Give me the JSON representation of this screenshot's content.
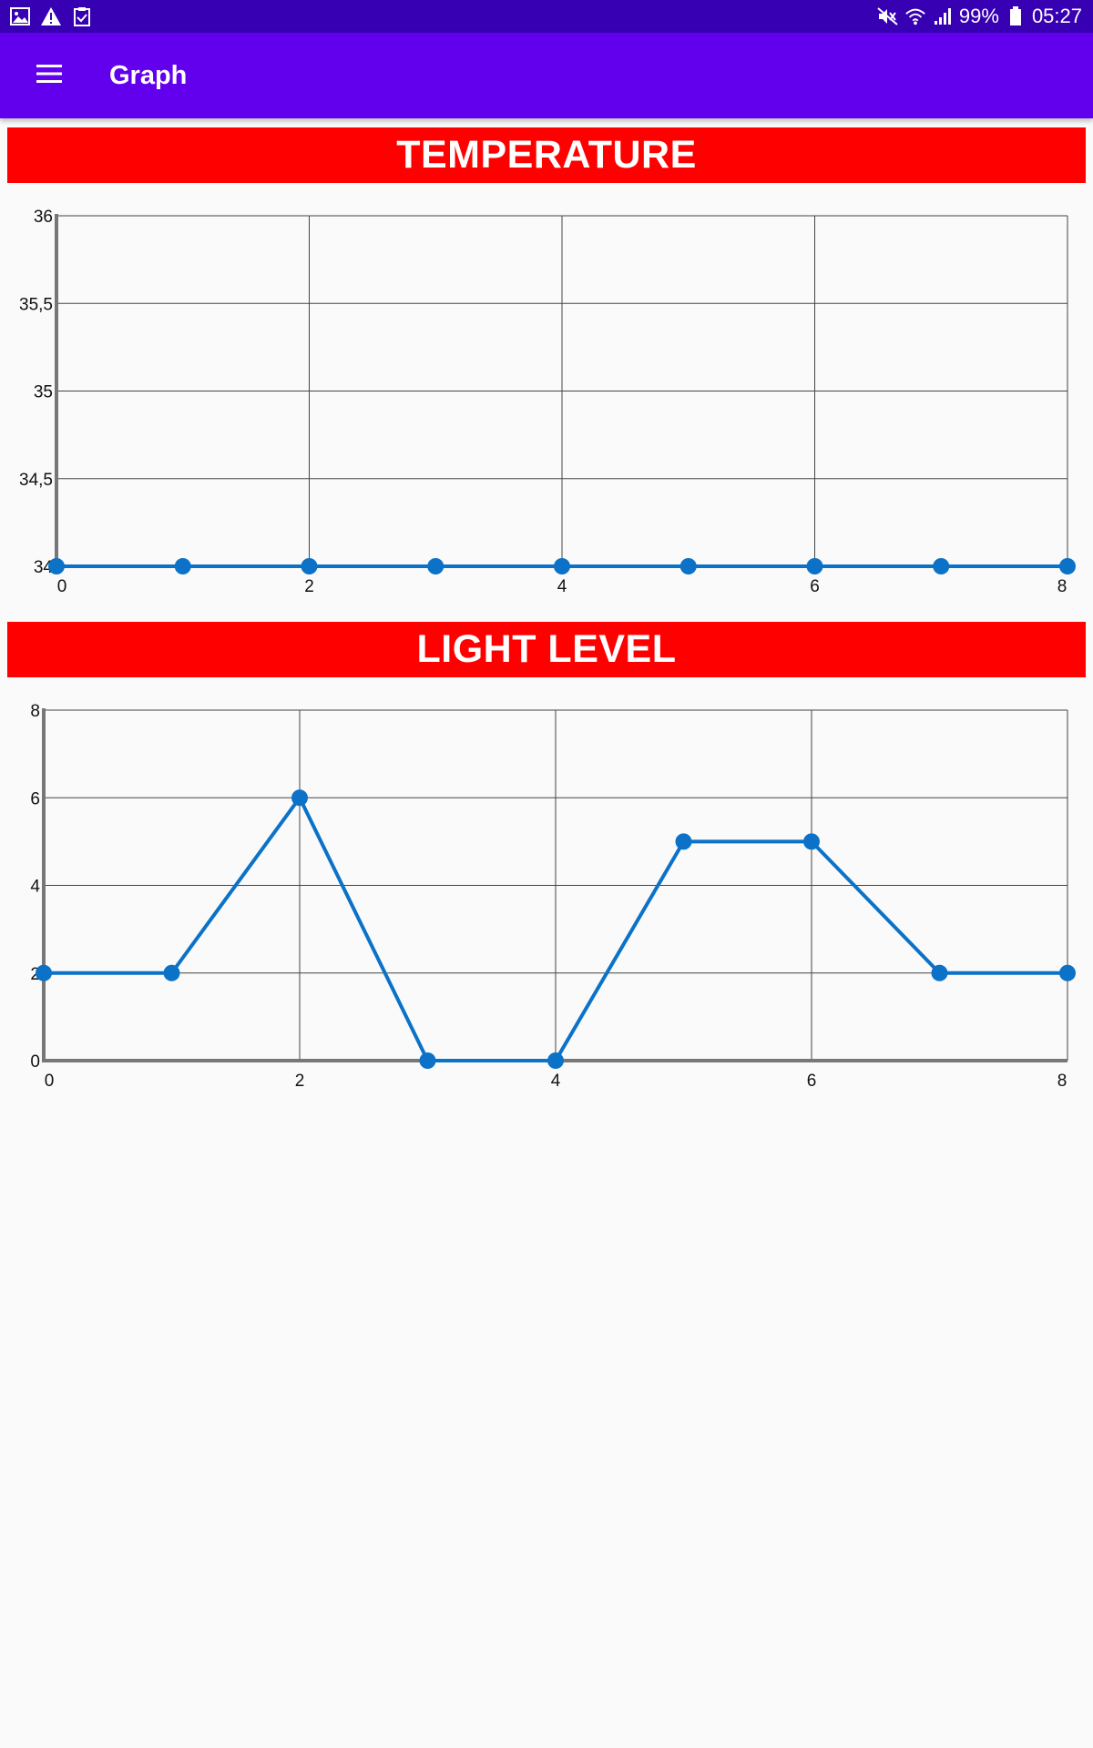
{
  "status_bar": {
    "left_icons": [
      "image-icon",
      "warning-icon",
      "clipboard-check-icon"
    ],
    "right_icons": [
      "mute-icon",
      "wifi-icon",
      "signal-icon",
      "battery-icon"
    ],
    "battery": "99%",
    "time": "05:27"
  },
  "app_bar": {
    "menu_icon": "hamburger-menu-icon",
    "title": "Graph"
  },
  "colors": {
    "status_bar": "#3700b3",
    "app_bar": "#6200ee",
    "section_header": "#ff0000",
    "series_line": "#0b72c8"
  },
  "sections": {
    "temperature": {
      "header": "TEMPERATURE"
    },
    "light": {
      "header": "LIGHT LEVEL"
    }
  },
  "chart_data": [
    {
      "type": "line",
      "x": [
        0,
        1,
        2,
        3,
        4,
        5,
        6,
        7,
        8
      ],
      "series": [
        {
          "values": [
            34,
            34,
            34,
            34,
            34,
            34,
            34,
            34,
            34
          ]
        }
      ],
      "xlim": [
        0,
        8
      ],
      "ylim": [
        34,
        36
      ],
      "x_ticks": [
        "0",
        "2",
        "4",
        "6",
        "8"
      ],
      "y_ticks": [
        "34",
        "34,5",
        "35",
        "35,5",
        "36"
      ],
      "grid": true
    },
    {
      "type": "line",
      "x": [
        0,
        1,
        2,
        3,
        4,
        5,
        6,
        7,
        8
      ],
      "series": [
        {
          "values": [
            2,
            2,
            6,
            0,
            0,
            5,
            5,
            2,
            2
          ]
        }
      ],
      "xlim": [
        0,
        8
      ],
      "ylim": [
        0,
        8
      ],
      "x_ticks": [
        "0",
        "2",
        "4",
        "6",
        "8"
      ],
      "y_ticks": [
        "0",
        "2",
        "4",
        "6",
        "8"
      ],
      "grid": true
    }
  ]
}
